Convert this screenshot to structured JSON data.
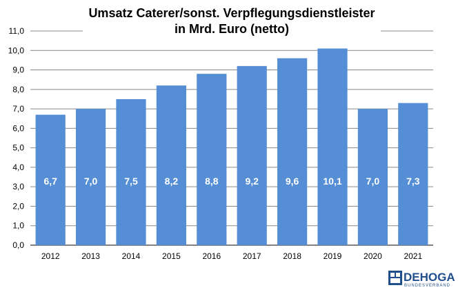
{
  "chart_data": {
    "type": "bar",
    "title_lines": [
      "Umsatz Caterer/sonst. Verpflegungsdienstleister",
      "in Mrd. Euro (netto)"
    ],
    "categories": [
      "2012",
      "2013",
      "2014",
      "2015",
      "2016",
      "2017",
      "2018",
      "2019",
      "2020",
      "2021"
    ],
    "values": [
      6.7,
      7.0,
      7.5,
      8.2,
      8.8,
      9.2,
      9.6,
      10.1,
      7.0,
      7.3
    ],
    "data_labels": [
      "6,7",
      "7,0",
      "7,5",
      "8,2",
      "8,8",
      "9,2",
      "9,6",
      "10,1",
      "7,0",
      "7,3"
    ],
    "yticks": [
      "0,0",
      "1,0",
      "2,0",
      "3,0",
      "4,0",
      "5,0",
      "6,0",
      "7,0",
      "8,0",
      "9,0",
      "10,0",
      "11,0"
    ],
    "ylim": [
      0,
      11
    ],
    "grid": true,
    "bar_color": "#558ed5",
    "grid_color": "#868686"
  },
  "logo": {
    "name": "DEHOGA",
    "subtitle": "BUNDESVERBAND",
    "icon": "dehoga-emblem-icon"
  }
}
